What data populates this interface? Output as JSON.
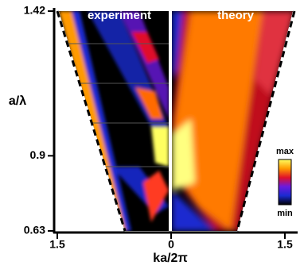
{
  "chart_data": {
    "type": "heatmap",
    "annotations": [
      "experiment",
      "theory"
    ],
    "xlabel": "ka/2π",
    "ylabel": "a/λ",
    "xlim": [
      -1.5,
      1.5
    ],
    "ylim": [
      0.63,
      1.42
    ],
    "xticks": [
      {
        "value": -1.5,
        "label": "1.5"
      },
      0,
      1.5
    ],
    "yticks": [
      0.63,
      0.9,
      1.42
    ],
    "colorbar": {
      "max_label": "max",
      "min_label": "min",
      "colors": [
        "#ffff60",
        "#ff9a00",
        "#e0102a",
        "#6a1ae0",
        "#1a2ad0",
        "#000000"
      ]
    }
  }
}
